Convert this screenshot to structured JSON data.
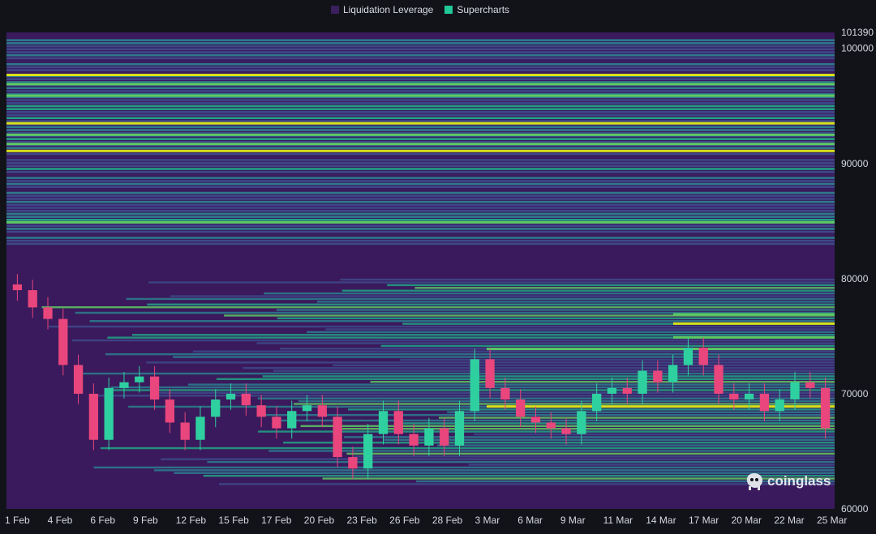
{
  "legend": {
    "items": [
      {
        "label": "Liquidation Leverage",
        "color": "#3b1f5e"
      },
      {
        "label": "Supercharts",
        "color": "#20c997"
      }
    ]
  },
  "watermark": {
    "text": "coinglass"
  },
  "chart_data": {
    "type": "heatmap",
    "title": "",
    "xlabel": "",
    "ylabel": "",
    "x_ticks": [
      "1 Feb",
      "4 Feb",
      "6 Feb",
      "9 Feb",
      "12 Feb",
      "15 Feb",
      "17 Feb",
      "20 Feb",
      "23 Feb",
      "26 Feb",
      "28 Feb",
      "3 Mar",
      "6 Mar",
      "9 Mar",
      "11 Mar",
      "14 Mar",
      "17 Mar",
      "20 Mar",
      "22 Mar",
      "25 Mar"
    ],
    "y_ticks": [
      101390,
      100000,
      90000,
      80000,
      70000,
      60000
    ],
    "ylim": [
      60000,
      101390
    ],
    "series": [
      {
        "name": "Supercharts",
        "kind": "candlestick-close",
        "x": [
          "1 Feb",
          "2 Feb",
          "3 Feb",
          "4 Feb",
          "5 Feb",
          "6 Feb",
          "7 Feb",
          "8 Feb",
          "9 Feb",
          "10 Feb",
          "11 Feb",
          "12 Feb",
          "13 Feb",
          "14 Feb",
          "15 Feb",
          "16 Feb",
          "17 Feb",
          "18 Feb",
          "19 Feb",
          "20 Feb",
          "21 Feb",
          "22 Feb",
          "23 Feb",
          "24 Feb",
          "25 Feb",
          "26 Feb",
          "27 Feb",
          "28 Feb",
          "1 Mar",
          "2 Mar",
          "3 Mar",
          "4 Mar",
          "5 Mar",
          "6 Mar",
          "7 Mar",
          "8 Mar",
          "9 Mar",
          "10 Mar",
          "11 Mar",
          "12 Mar",
          "13 Mar",
          "14 Mar",
          "15 Mar",
          "16 Mar",
          "17 Mar",
          "18 Mar",
          "19 Mar",
          "20 Mar",
          "21 Mar",
          "22 Mar",
          "23 Mar",
          "24 Mar",
          "25 Mar",
          "26 Mar"
        ],
        "values": [
          79000,
          77500,
          76500,
          72500,
          70000,
          66000,
          70500,
          71000,
          71500,
          69500,
          67500,
          66000,
          68000,
          69500,
          70000,
          69000,
          68000,
          67000,
          68500,
          69000,
          68000,
          64500,
          63500,
          66500,
          68500,
          66500,
          65500,
          67000,
          65500,
          68500,
          73000,
          70500,
          69500,
          68000,
          67500,
          67000,
          66500,
          68500,
          70000,
          70500,
          70000,
          72000,
          71000,
          72500,
          74000,
          72500,
          70000,
          69500,
          70000,
          68500,
          69500,
          71000,
          70500,
          67000
        ]
      },
      {
        "name": "Liquidation Leverage",
        "kind": "heat-levels",
        "levels_color_scale": [
          "#3b1f5e",
          "#3e4a8a",
          "#2c7f8e",
          "#21a585",
          "#5ec962",
          "#d7e21a"
        ],
        "bright_levels": [
          97800,
          97000,
          96000,
          93600,
          92600,
          91800,
          91200,
          85000,
          77000,
          76200,
          75000,
          74000,
          69000
        ]
      }
    ],
    "grid": false,
    "legend_position": "top-center"
  }
}
